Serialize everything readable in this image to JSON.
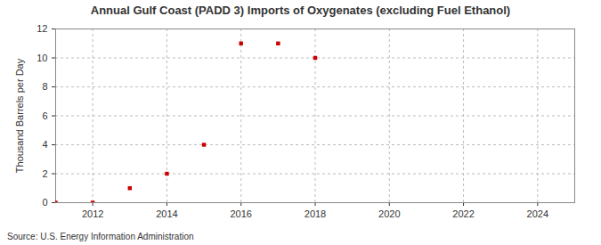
{
  "chart_data": {
    "type": "scatter",
    "title": "Annual Gulf Coast (PADD 3) Imports of Oxygenates (excluding Fuel Ethanol)",
    "y_label": "Thousand Barrels per Day",
    "caption": "Source: U.S. Energy Information Administration",
    "x": [
      2011,
      2012,
      2013,
      2014,
      2015,
      2016,
      2017,
      2018
    ],
    "values": [
      0,
      0,
      1,
      2,
      4,
      11,
      11,
      10
    ],
    "color": "#cc0000",
    "marker": "square",
    "xlim": [
      2011,
      2025
    ],
    "xticks": [
      2012,
      2014,
      2016,
      2018,
      2020,
      2022,
      2024
    ],
    "ylim": [
      0,
      12
    ],
    "yticks": [
      0,
      2,
      4,
      6,
      8,
      10,
      12
    ],
    "grid": true
  }
}
